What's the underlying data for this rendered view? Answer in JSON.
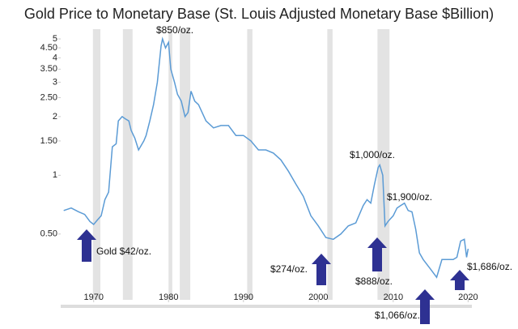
{
  "chart_data": {
    "type": "line",
    "title": "Gold Price to Monetary Base (St. Louis Adjusted Monetary Base $Billion)",
    "log_scale": true,
    "grid": false,
    "x": [
      1966,
      1967,
      1968,
      1968.8,
      1969.5,
      1970,
      1970.5,
      1971,
      1971.5,
      1972,
      1972.5,
      1973,
      1973.3,
      1973.8,
      1974.2,
      1974.7,
      1975,
      1975.5,
      1976,
      1976.7,
      1977,
      1977.5,
      1978,
      1978.5,
      1979,
      1979.2,
      1979.6,
      1980,
      1980.3,
      1980.8,
      1981.2,
      1981.7,
      1982.2,
      1982.6,
      1983,
      1983.5,
      1984,
      1985,
      1986,
      1987,
      1988,
      1989,
      1990,
      1991,
      1992,
      1993,
      1994,
      1995,
      1996,
      1997,
      1998,
      1999,
      2000,
      2001,
      2002,
      2003,
      2004,
      2005,
      2006,
      2006.5,
      2007,
      2007.5,
      2008,
      2008.2,
      2008.6,
      2008.9,
      2009.3,
      2010,
      2010.5,
      2011,
      2011.5,
      2012,
      2012.5,
      2013,
      2013.5,
      2014,
      2015,
      2015.8,
      2016.5,
      2017,
      2018,
      2018.5,
      2019,
      2019.5,
      2019.8,
      2020
    ],
    "series": [
      {
        "color": "#5b9bd5",
        "values": [
          0.66,
          0.68,
          0.65,
          0.63,
          0.58,
          0.56,
          0.59,
          0.62,
          0.75,
          0.82,
          1.4,
          1.45,
          1.9,
          2.0,
          1.95,
          1.9,
          1.7,
          1.55,
          1.35,
          1.5,
          1.6,
          1.9,
          2.3,
          3.0,
          4.6,
          5.0,
          4.5,
          4.8,
          3.5,
          3.0,
          2.6,
          2.4,
          2.0,
          2.1,
          2.7,
          2.4,
          2.3,
          1.9,
          1.75,
          1.8,
          1.8,
          1.6,
          1.6,
          1.5,
          1.35,
          1.35,
          1.3,
          1.2,
          1.05,
          0.9,
          0.78,
          0.62,
          0.55,
          0.48,
          0.47,
          0.5,
          0.55,
          0.57,
          0.7,
          0.75,
          0.72,
          0.9,
          1.1,
          1.13,
          1.0,
          0.55,
          0.58,
          0.62,
          0.68,
          0.7,
          0.72,
          0.66,
          0.65,
          0.53,
          0.4,
          0.37,
          0.33,
          0.3,
          0.37,
          0.37,
          0.37,
          0.38,
          0.46,
          0.47,
          0.38,
          0.42
        ]
      }
    ],
    "xlim": [
      1965.6,
      2020.5
    ],
    "xticks": [
      1970,
      1980,
      1990,
      2000,
      2010,
      2020
    ],
    "ylim": [
      0.23,
      5.4
    ],
    "yticks": [
      {
        "value": 0.5,
        "label": "0.50"
      },
      1,
      {
        "value": 1.5,
        "label": "1.50"
      },
      2,
      {
        "value": 2.5,
        "label": "2.50"
      },
      3,
      {
        "value": 3.5,
        "label": "3.50"
      },
      4,
      {
        "value": 4.5,
        "label": "4.50"
      },
      5
    ],
    "recessions": [
      [
        1969.9,
        1970.9
      ],
      [
        1973.9,
        1975.2
      ],
      [
        1980.0,
        1980.5
      ],
      [
        1981.5,
        1982.9
      ],
      [
        1990.5,
        1991.2
      ],
      [
        2001.2,
        2001.9
      ],
      [
        2007.9,
        2009.5
      ]
    ],
    "annotations": [
      "$850/oz.",
      "$1,000/oz.",
      "$1,900/oz.",
      "Gold $42/oz.",
      "$274/oz.",
      "$888/oz.",
      "$1,066/oz.",
      "$1,686/oz."
    ]
  }
}
